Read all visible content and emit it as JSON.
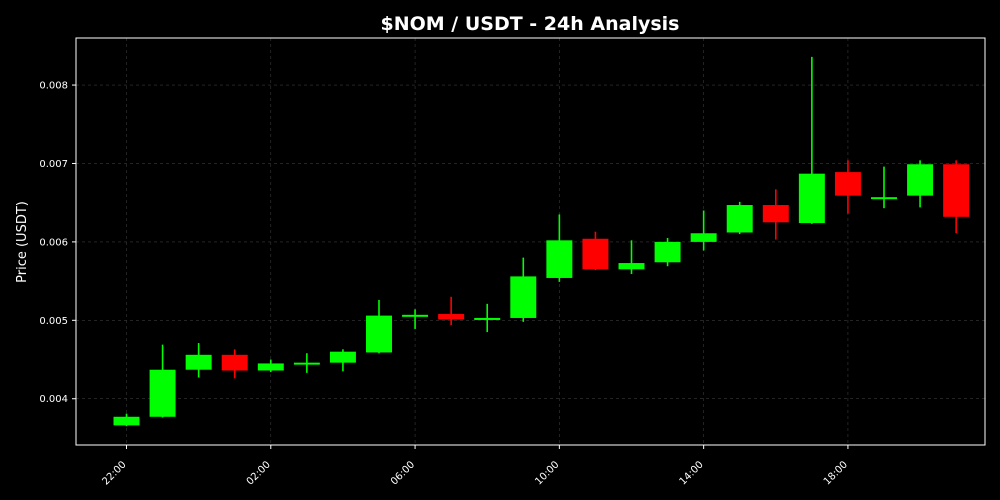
{
  "chart_data": {
    "type": "candlestick",
    "title": "$NOM / USDT - 24h Analysis",
    "ylabel": "Price (USDT)",
    "xlabel": "",
    "ylim": [
      0.00341,
      0.0086
    ],
    "yticks": [
      0.004,
      0.005,
      0.006,
      0.007,
      0.008
    ],
    "ytick_labels": [
      "0.004",
      "0.005",
      "0.006",
      "0.007",
      "0.008"
    ],
    "xlim": [
      20.6,
      45.8
    ],
    "xticks": [
      22,
      26,
      30,
      34,
      38,
      42
    ],
    "xtick_labels": [
      "22:00",
      "02:00",
      "06:00",
      "10:00",
      "14:00",
      "18:00"
    ],
    "grid": true,
    "colors": {
      "up": "#00ff00",
      "down": "#ff0000",
      "background": "#000000",
      "text": "#ffffff"
    },
    "candles": [
      {
        "time": "22:00",
        "open": 0.00366,
        "high": 0.00381,
        "low": 0.00365,
        "close": 0.00377
      },
      {
        "time": "23:00",
        "open": 0.00377,
        "high": 0.00469,
        "low": 0.00376,
        "close": 0.00437
      },
      {
        "time": "00:00",
        "open": 0.00437,
        "high": 0.00471,
        "low": 0.00427,
        "close": 0.00456
      },
      {
        "time": "01:00",
        "open": 0.00456,
        "high": 0.00463,
        "low": 0.00426,
        "close": 0.00436
      },
      {
        "time": "02:00",
        "open": 0.00436,
        "high": 0.0045,
        "low": 0.00434,
        "close": 0.00445
      },
      {
        "time": "03:00",
        "open": 0.00445,
        "high": 0.00458,
        "low": 0.00433,
        "close": 0.00446
      },
      {
        "time": "04:00",
        "open": 0.00446,
        "high": 0.00463,
        "low": 0.00435,
        "close": 0.0046
      },
      {
        "time": "05:00",
        "open": 0.00459,
        "high": 0.00526,
        "low": 0.00458,
        "close": 0.00506
      },
      {
        "time": "06:00",
        "open": 0.00506,
        "high": 0.00514,
        "low": 0.00489,
        "close": 0.00507
      },
      {
        "time": "07:00",
        "open": 0.00508,
        "high": 0.0053,
        "low": 0.00494,
        "close": 0.00501
      },
      {
        "time": "08:00",
        "open": 0.00501,
        "high": 0.00521,
        "low": 0.00485,
        "close": 0.00503
      },
      {
        "time": "09:00",
        "open": 0.00503,
        "high": 0.0058,
        "low": 0.00498,
        "close": 0.00556
      },
      {
        "time": "10:00",
        "open": 0.00554,
        "high": 0.00635,
        "low": 0.00549,
        "close": 0.00602
      },
      {
        "time": "11:00",
        "open": 0.00604,
        "high": 0.00613,
        "low": 0.00564,
        "close": 0.00565
      },
      {
        "time": "12:00",
        "open": 0.00565,
        "high": 0.00602,
        "low": 0.00559,
        "close": 0.00573
      },
      {
        "time": "13:00",
        "open": 0.00574,
        "high": 0.00605,
        "low": 0.00569,
        "close": 0.006
      },
      {
        "time": "14:00",
        "open": 0.006,
        "high": 0.0064,
        "low": 0.00589,
        "close": 0.00611
      },
      {
        "time": "15:00",
        "open": 0.00612,
        "high": 0.00651,
        "low": 0.0061,
        "close": 0.00647
      },
      {
        "time": "16:00",
        "open": 0.00647,
        "high": 0.00667,
        "low": 0.00603,
        "close": 0.00625
      },
      {
        "time": "17:00",
        "open": 0.00624,
        "high": 0.00836,
        "low": 0.00623,
        "close": 0.00687
      },
      {
        "time": "18:00",
        "open": 0.00689,
        "high": 0.00704,
        "low": 0.00636,
        "close": 0.00659
      },
      {
        "time": "19:00",
        "open": 0.00657,
        "high": 0.00696,
        "low": 0.00643,
        "close": 0.00657
      },
      {
        "time": "20:00",
        "open": 0.00659,
        "high": 0.00704,
        "low": 0.00644,
        "close": 0.00699
      },
      {
        "time": "21:00",
        "open": 0.00699,
        "high": 0.00704,
        "low": 0.00611,
        "close": 0.00632
      }
    ]
  }
}
